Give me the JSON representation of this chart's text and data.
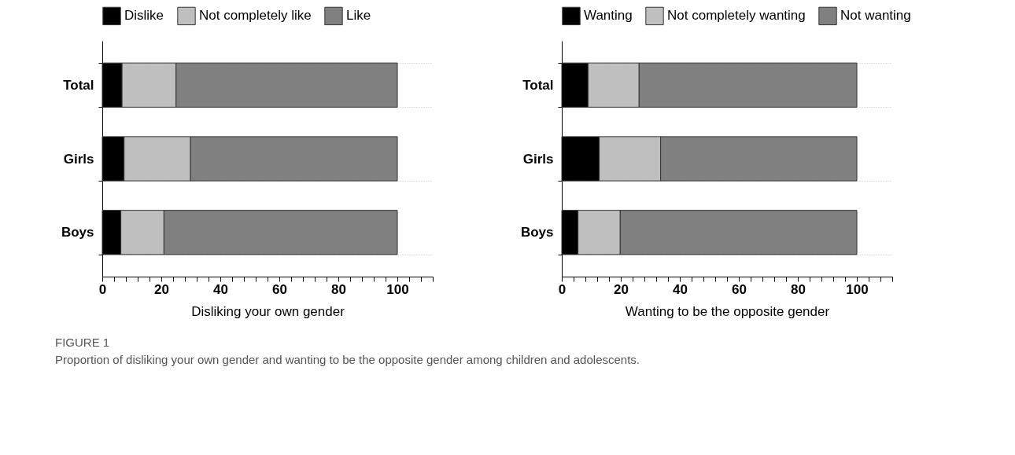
{
  "chart_data": [
    {
      "type": "bar",
      "orientation": "horizontal",
      "stacked": true,
      "xlabel": "Disliking your own gender",
      "categories": [
        "Total",
        "Girls",
        "Boys"
      ],
      "series": [
        {
          "name": "Dislike",
          "color": "#000000",
          "values": [
            6.7,
            7.4,
            6.3
          ]
        },
        {
          "name": "Not completely like",
          "color": "#bfbfbf",
          "values": [
            18.3,
            22.5,
            14.6
          ]
        },
        {
          "name": "Like",
          "color": "#808080",
          "values": [
            75.0,
            70.1,
            79.1
          ]
        }
      ],
      "xlim": [
        0,
        112
      ],
      "xticks": [
        0,
        {
          "value": 4,
          "label": null
        },
        {
          "value": 8,
          "label": null
        },
        {
          "value": 12,
          "label": null
        },
        {
          "value": 16,
          "label": null
        },
        20,
        {
          "value": 24,
          "label": null
        },
        {
          "value": 28,
          "label": null
        },
        {
          "value": 32,
          "label": null
        },
        {
          "value": 36,
          "label": null
        },
        40,
        {
          "value": 44,
          "label": null
        },
        {
          "value": 48,
          "label": null
        },
        {
          "value": 52,
          "label": null
        },
        {
          "value": 56,
          "label": null
        },
        60,
        {
          "value": 64,
          "label": null
        },
        {
          "value": 68,
          "label": null
        },
        {
          "value": 72,
          "label": null
        },
        {
          "value": 76,
          "label": null
        },
        80,
        {
          "value": 84,
          "label": null
        },
        {
          "value": 88,
          "label": null
        },
        {
          "value": 92,
          "label": null
        },
        {
          "value": 96,
          "label": null
        },
        100,
        {
          "value": 104,
          "label": null
        },
        {
          "value": 108,
          "label": null
        },
        {
          "value": 112,
          "label": null
        }
      ],
      "grid": "y",
      "legend": "top",
      "annotations": [
        "FIGURE 1",
        "Proportion of disliking your own gender and wanting to be the opposite gender among children and adolescents."
      ]
    },
    {
      "type": "bar",
      "orientation": "horizontal",
      "stacked": true,
      "xlabel": "Wanting to be the opposite gender",
      "categories": [
        "Total",
        "Girls",
        "Boys"
      ],
      "series": [
        {
          "name": "Wanting",
          "color": "#000000",
          "values": [
            8.9,
            12.7,
            5.5
          ]
        },
        {
          "name": "Not completely wanting",
          "color": "#bfbfbf",
          "values": [
            17.3,
            20.8,
            14.3
          ]
        },
        {
          "name": "Not wanting",
          "color": "#808080",
          "values": [
            73.8,
            66.5,
            80.2
          ]
        }
      ],
      "xlim": [
        0,
        112
      ],
      "xticks": [
        0,
        {
          "value": 4,
          "label": null
        },
        {
          "value": 8,
          "label": null
        },
        {
          "value": 12,
          "label": null
        },
        {
          "value": 16,
          "label": null
        },
        20,
        {
          "value": 24,
          "label": null
        },
        {
          "value": 28,
          "label": null
        },
        {
          "value": 32,
          "label": null
        },
        {
          "value": 36,
          "label": null
        },
        40,
        {
          "value": 44,
          "label": null
        },
        {
          "value": 48,
          "label": null
        },
        {
          "value": 52,
          "label": null
        },
        {
          "value": 56,
          "label": null
        },
        60,
        {
          "value": 64,
          "label": null
        },
        {
          "value": 68,
          "label": null
        },
        {
          "value": 72,
          "label": null
        },
        {
          "value": 76,
          "label": null
        },
        80,
        {
          "value": 84,
          "label": null
        },
        {
          "value": 88,
          "label": null
        },
        {
          "value": 92,
          "label": null
        },
        {
          "value": 96,
          "label": null
        },
        100,
        {
          "value": 104,
          "label": null
        },
        {
          "value": 108,
          "label": null
        },
        {
          "value": 112,
          "label": null
        }
      ],
      "grid": "y",
      "legend": "top"
    }
  ]
}
